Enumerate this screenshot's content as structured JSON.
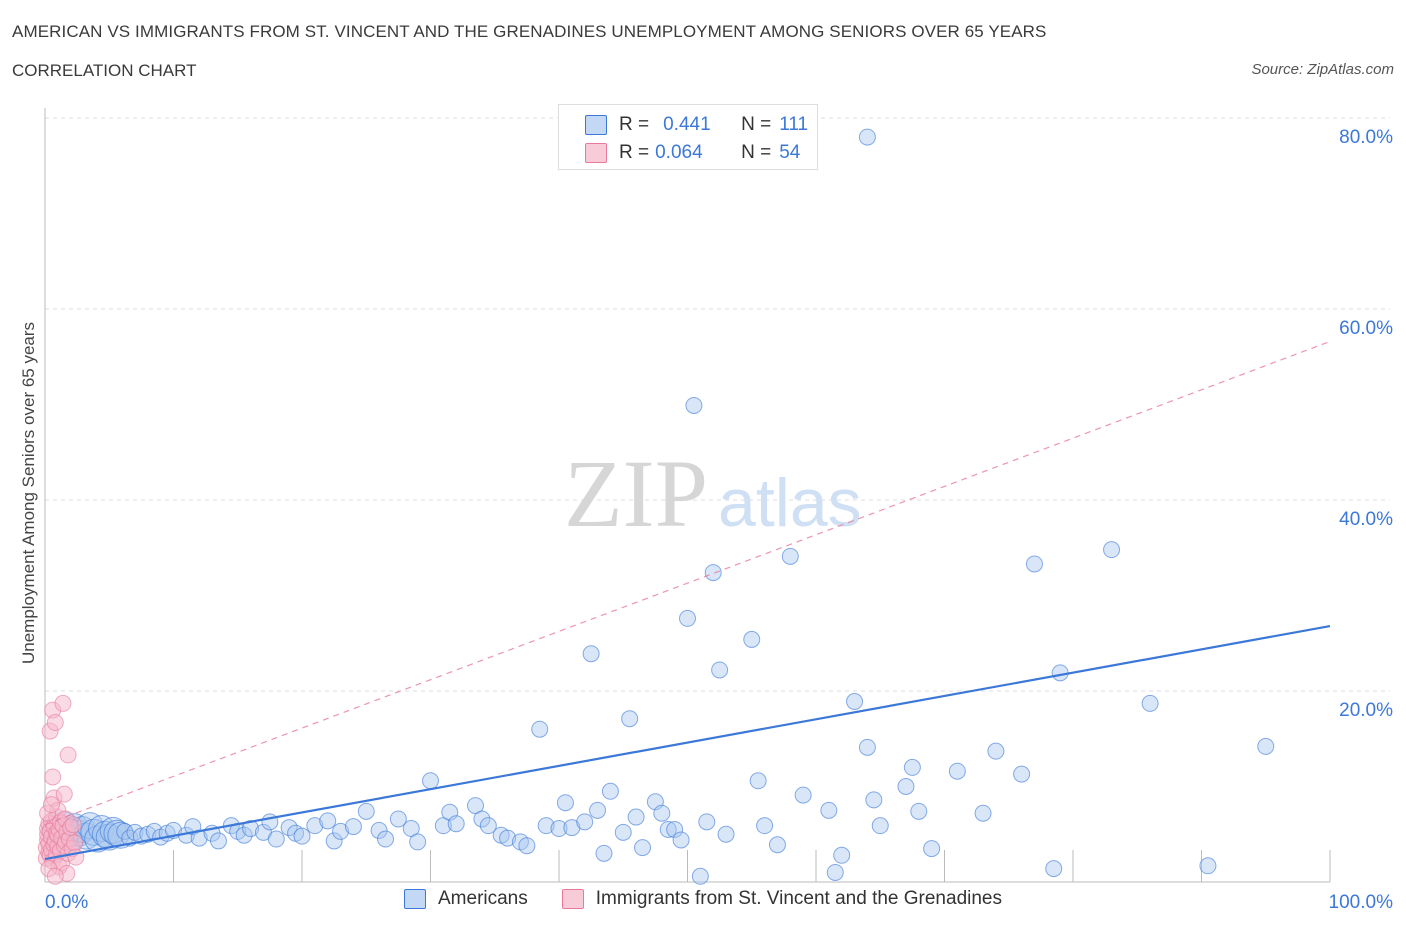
{
  "header": {
    "title": "AMERICAN VS IMMIGRANTS FROM ST. VINCENT AND THE GRENADINES UNEMPLOYMENT AMONG SENIORS OVER 65 YEARS",
    "subtitle": "CORRELATION CHART",
    "source": "Source: ZipAtlas.com"
  },
  "colors": {
    "blue": "#3b78d8",
    "blue_fill": "#a9c7ef",
    "pink": "#e8799b",
    "pink_fill": "#f5b8cb",
    "grid": "#dcdcdc",
    "axis_text": "#3b78d8"
  },
  "legend": {
    "rows": [
      {
        "r_label": "R =",
        "r_value": "0.441",
        "n_label": "N =",
        "n_value": "111"
      },
      {
        "r_label": "R =",
        "r_value": "0.064",
        "n_label": "N =",
        "n_value": "54"
      }
    ]
  },
  "watermark": {
    "zip": "ZIP",
    "atlas": "atlas"
  },
  "chart_data": {
    "type": "scatter",
    "title": "AMERICAN VS IMMIGRANTS FROM ST. VINCENT AND THE GRENADINES UNEMPLOYMENT AMONG SENIORS OVER 65 YEARS",
    "xlabel": "",
    "ylabel": "Unemployment Among Seniors over 65 years",
    "xlim": [
      0,
      100
    ],
    "ylim": [
      0,
      80
    ],
    "x_tick_labels": [
      "0.0%",
      "100.0%"
    ],
    "y_tick_labels": [
      "20.0%",
      "40.0%",
      "60.0%",
      "80.0%"
    ],
    "y_ticks": [
      20,
      40,
      60,
      80
    ],
    "grid": true,
    "legend_position": "top-center",
    "series": [
      {
        "name": "Americans",
        "color": "#3b78d8",
        "trend": {
          "x": [
            0,
            100
          ],
          "y": [
            2.4,
            26.8
          ],
          "style": "solid"
        },
        "points": [
          [
            0.8,
            5.4
          ],
          [
            1.2,
            5.0
          ],
          [
            1.5,
            6.0
          ],
          [
            1.8,
            5.3
          ],
          [
            2.0,
            4.6
          ],
          [
            2.3,
            5.8
          ],
          [
            2.6,
            5.1
          ],
          [
            2.9,
            5.5
          ],
          [
            3.2,
            4.8
          ],
          [
            3.5,
            5.9
          ],
          [
            3.8,
            5.2
          ],
          [
            4.1,
            4.5
          ],
          [
            4.4,
            5.6
          ],
          [
            4.7,
            5.0
          ],
          [
            5.0,
            4.7
          ],
          [
            5.3,
            5.4
          ],
          [
            5.6,
            5.1
          ],
          [
            5.9,
            4.9
          ],
          [
            6.2,
            5.3
          ],
          [
            6.6,
            4.6
          ],
          [
            7.0,
            5.2
          ],
          [
            7.5,
            4.8
          ],
          [
            8.0,
            5.0
          ],
          [
            8.5,
            5.3
          ],
          [
            9.0,
            4.7
          ],
          [
            9.5,
            5.1
          ],
          [
            10.0,
            5.4
          ],
          [
            11.0,
            4.9
          ],
          [
            11.5,
            5.8
          ],
          [
            12.0,
            4.6
          ],
          [
            13.0,
            5.1
          ],
          [
            13.5,
            4.3
          ],
          [
            14.5,
            5.9
          ],
          [
            15.0,
            5.3
          ],
          [
            15.5,
            4.9
          ],
          [
            16.0,
            5.6
          ],
          [
            17.0,
            5.2
          ],
          [
            17.5,
            6.3
          ],
          [
            18.0,
            4.5
          ],
          [
            19.0,
            5.7
          ],
          [
            19.5,
            5.1
          ],
          [
            20.0,
            4.8
          ],
          [
            21.0,
            5.9
          ],
          [
            22.0,
            6.4
          ],
          [
            22.5,
            4.3
          ],
          [
            23.0,
            5.3
          ],
          [
            24.0,
            5.8
          ],
          [
            25.0,
            7.4
          ],
          [
            26.0,
            5.4
          ],
          [
            26.5,
            4.5
          ],
          [
            27.5,
            6.6
          ],
          [
            28.5,
            5.6
          ],
          [
            29.0,
            4.2
          ],
          [
            30.0,
            10.6
          ],
          [
            31.0,
            5.9
          ],
          [
            31.5,
            7.3
          ],
          [
            32.0,
            6.1
          ],
          [
            33.5,
            8.0
          ],
          [
            34.0,
            6.6
          ],
          [
            34.5,
            5.9
          ],
          [
            35.5,
            4.9
          ],
          [
            36.0,
            4.6
          ],
          [
            37.0,
            4.2
          ],
          [
            37.5,
            3.8
          ],
          [
            38.5,
            16.0
          ],
          [
            39.0,
            5.9
          ],
          [
            40.0,
            5.6
          ],
          [
            40.5,
            8.3
          ],
          [
            41.0,
            5.7
          ],
          [
            42.0,
            6.3
          ],
          [
            42.5,
            23.9
          ],
          [
            43.0,
            7.5
          ],
          [
            43.5,
            3.0
          ],
          [
            44.0,
            9.5
          ],
          [
            45.0,
            5.2
          ],
          [
            45.5,
            17.1
          ],
          [
            46.0,
            6.8
          ],
          [
            46.5,
            3.6
          ],
          [
            47.5,
            8.4
          ],
          [
            48.0,
            7.2
          ],
          [
            48.5,
            5.5
          ],
          [
            49.0,
            5.5
          ],
          [
            49.5,
            4.4
          ],
          [
            50.0,
            27.6
          ],
          [
            50.5,
            49.9
          ],
          [
            51.0,
            0.6
          ],
          [
            51.5,
            6.3
          ],
          [
            52.0,
            32.4
          ],
          [
            52.5,
            22.2
          ],
          [
            53.0,
            5.0
          ],
          [
            55.0,
            25.4
          ],
          [
            55.5,
            10.6
          ],
          [
            56.0,
            5.9
          ],
          [
            57.0,
            3.9
          ],
          [
            58.0,
            34.1
          ],
          [
            59.0,
            9.1
          ],
          [
            61.0,
            7.5
          ],
          [
            61.5,
            1.0
          ],
          [
            62.0,
            2.8
          ],
          [
            63.0,
            18.9
          ],
          [
            64.0,
            14.1
          ],
          [
            64.5,
            8.6
          ],
          [
            65.0,
            5.9
          ],
          [
            67.0,
            10.0
          ],
          [
            67.5,
            12.0
          ],
          [
            68.0,
            7.4
          ],
          [
            69.0,
            3.5
          ],
          [
            71.0,
            11.6
          ],
          [
            73.0,
            7.2
          ],
          [
            74.0,
            13.7
          ],
          [
            76.0,
            11.3
          ],
          [
            77.0,
            33.3
          ],
          [
            78.5,
            1.4
          ],
          [
            79.0,
            21.9
          ],
          [
            83.0,
            34.8
          ],
          [
            86.0,
            18.7
          ],
          [
            90.5,
            1.7
          ],
          [
            95.0,
            14.2
          ],
          [
            64.0,
            78.0
          ]
        ]
      },
      {
        "name": "Immigrants from St. Vincent and the Grenadines",
        "color": "#e8799b",
        "trend": {
          "x": [
            0,
            100
          ],
          "y": [
            6.0,
            56.6
          ],
          "style": "dashed"
        },
        "points": [
          [
            0.1,
            2.5
          ],
          [
            0.1,
            3.6
          ],
          [
            0.2,
            4.4
          ],
          [
            0.2,
            5.0
          ],
          [
            0.2,
            5.6
          ],
          [
            0.3,
            6.1
          ],
          [
            0.3,
            3.1
          ],
          [
            0.3,
            4.0
          ],
          [
            0.4,
            2.8
          ],
          [
            0.4,
            5.3
          ],
          [
            0.4,
            15.8
          ],
          [
            0.5,
            6.4
          ],
          [
            0.5,
            3.4
          ],
          [
            0.5,
            4.7
          ],
          [
            0.6,
            11.0
          ],
          [
            0.6,
            2.2
          ],
          [
            0.6,
            18.0
          ],
          [
            0.7,
            5.8
          ],
          [
            0.7,
            3.9
          ],
          [
            0.7,
            8.8
          ],
          [
            0.8,
            4.3
          ],
          [
            0.8,
            16.7
          ],
          [
            0.9,
            6.8
          ],
          [
            0.9,
            2.9
          ],
          [
            0.9,
            5.1
          ],
          [
            1.0,
            7.5
          ],
          [
            1.0,
            3.7
          ],
          [
            1.0,
            4.9
          ],
          [
            1.1,
            5.5
          ],
          [
            1.1,
            1.6
          ],
          [
            1.2,
            6.2
          ],
          [
            1.2,
            3.3
          ],
          [
            1.3,
            4.6
          ],
          [
            1.3,
            2.0
          ],
          [
            1.4,
            5.9
          ],
          [
            1.4,
            18.7
          ],
          [
            1.5,
            3.8
          ],
          [
            1.5,
            9.2
          ],
          [
            1.6,
            4.2
          ],
          [
            1.6,
            6.6
          ],
          [
            1.7,
            0.9
          ],
          [
            1.7,
            5.2
          ],
          [
            1.8,
            13.3
          ],
          [
            1.8,
            3.0
          ],
          [
            1.9,
            4.5
          ],
          [
            2.0,
            5.7
          ],
          [
            2.1,
            3.5
          ],
          [
            2.2,
            6.0
          ],
          [
            2.3,
            4.1
          ],
          [
            2.4,
            2.6
          ],
          [
            0.2,
            7.2
          ],
          [
            0.3,
            1.4
          ],
          [
            0.5,
            8.1
          ],
          [
            0.8,
            0.6
          ]
        ]
      }
    ]
  }
}
